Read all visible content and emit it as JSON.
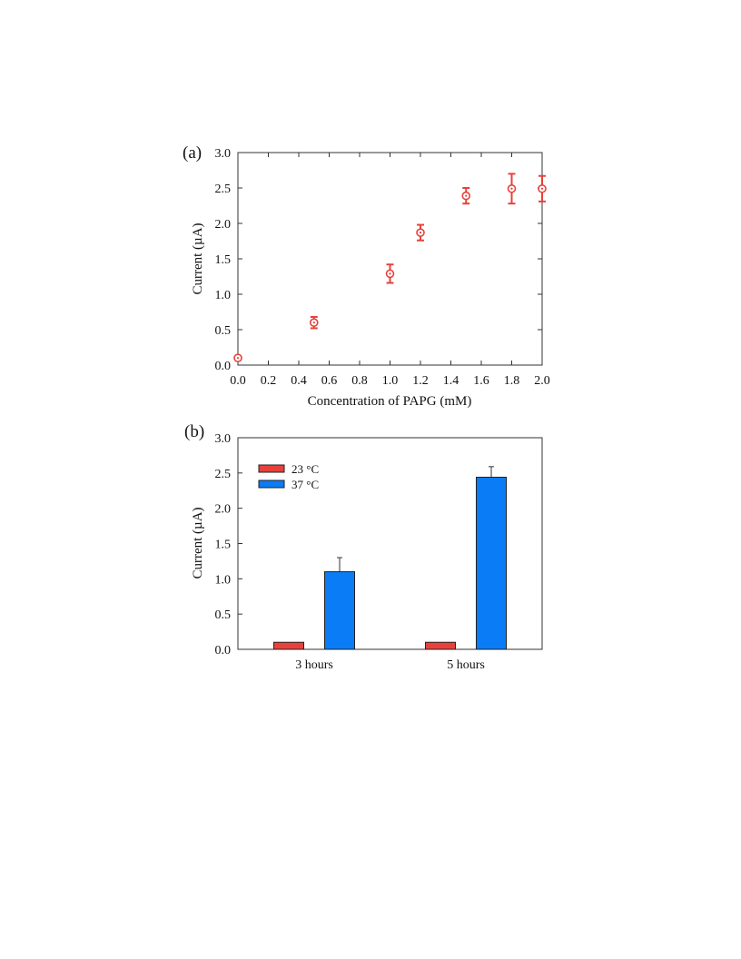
{
  "panels": [
    {
      "panel_label": "(a)",
      "chart_data": {
        "type": "scatter",
        "xlabel": "Concentration of PAPG (mM)",
        "ylabel": "Current (µA)",
        "xlim": [
          0,
          2.0
        ],
        "ylim": [
          0,
          3.0
        ],
        "xticks": [
          "0.0",
          "0.2",
          "0.4",
          "0.6",
          "0.8",
          "1.0",
          "1.2",
          "1.4",
          "1.6",
          "1.8",
          "2.0"
        ],
        "yticks": [
          "0.0",
          "0.5",
          "1.0",
          "1.5",
          "2.0",
          "2.5",
          "3.0"
        ],
        "grid": false,
        "color": "#e8413c",
        "marker": "circle-dot",
        "x": [
          0.0,
          0.5,
          1.0,
          1.2,
          1.5,
          1.8,
          2.0
        ],
        "y": [
          0.1,
          0.6,
          1.29,
          1.87,
          2.39,
          2.49,
          2.49
        ],
        "yerr": [
          0.0,
          0.08,
          0.13,
          0.11,
          0.11,
          0.21,
          0.18
        ]
      }
    },
    {
      "panel_label": "(b)",
      "chart_data": {
        "type": "bar",
        "xlabel": "",
        "ylabel": "Current (µA)",
        "ylim": [
          0,
          3.0
        ],
        "yticks": [
          "0.0",
          "0.5",
          "1.0",
          "1.5",
          "2.0",
          "2.5",
          "3.0"
        ],
        "grid": false,
        "legend_position": "top-left",
        "categories": [
          "3 hours",
          "5 hours"
        ],
        "series": [
          {
            "name": "23 °C",
            "color": "#e8413c",
            "values": [
              0.1,
              0.1
            ],
            "yerr": [
              0.0,
              0.0
            ]
          },
          {
            "name": "37 °C",
            "color": "#0a7cf5",
            "values": [
              1.1,
              2.44
            ],
            "yerr": [
              0.2,
              0.15
            ]
          }
        ]
      }
    }
  ]
}
